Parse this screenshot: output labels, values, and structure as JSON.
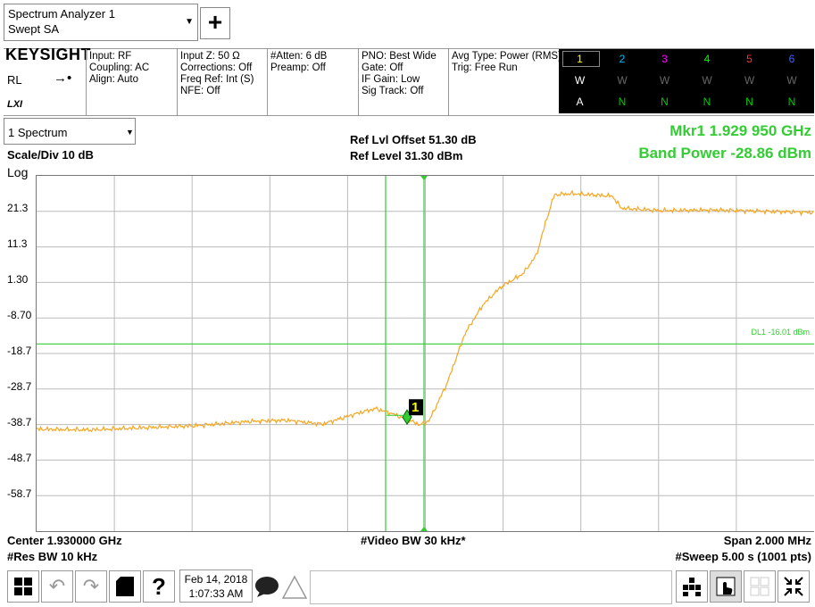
{
  "mode": {
    "line1": "Spectrum Analyzer 1",
    "line2": "Swept SA"
  },
  "toolbar": {
    "add_label": "+"
  },
  "brand": {
    "logo": "KEYSIGHT",
    "rl": "RL",
    "lxi": "LXI"
  },
  "info": {
    "col1": [
      "Input: RF",
      "Coupling: AC",
      "Align: Auto"
    ],
    "col2": [
      "Input Z: 50 Ω",
      "Corrections: Off",
      "Freq Ref: Int (S)",
      "NFE: Off"
    ],
    "col3": [
      "#Atten: 6 dB",
      "Preamp: Off"
    ],
    "col4": [
      "PNO: Best Wide",
      "Gate: Off",
      "IF Gain: Low",
      "Sig Track: Off"
    ],
    "col5": [
      "Avg Type: Power (RMS)",
      "Trig: Free Run"
    ]
  },
  "traces": [
    {
      "num": "1",
      "type": "W",
      "det": "A",
      "color": "#ffff00"
    },
    {
      "num": "2",
      "type": "W",
      "det": "N",
      "color": "#00c0ff"
    },
    {
      "num": "3",
      "type": "W",
      "det": "N",
      "color": "#ff00ff"
    },
    {
      "num": "4",
      "type": "W",
      "det": "N",
      "color": "#00ff00"
    },
    {
      "num": "5",
      "type": "W",
      "det": "N",
      "color": "#ff3030"
    },
    {
      "num": "6",
      "type": "W",
      "det": "N",
      "color": "#4060ff"
    }
  ],
  "window": {
    "select": "1 Spectrum",
    "scale_div": "Scale/Div 10 dB",
    "log": "Log",
    "ref_offset": "Ref Lvl Offset 51.30 dB",
    "ref_level": "Ref Level 31.30 dBm",
    "marker": "Mkr1  1.929 950 GHz",
    "band_power": "Band Power -28.86 dBm",
    "dl_label": "DL1 -16.01 dBm",
    "marker_number": "1"
  },
  "axis": {
    "y_ticks": [
      "21.3",
      "11.3",
      "1.30",
      "-8.70",
      "-18.7",
      "-28.7",
      "-38.7",
      "-48.7",
      "-58.7"
    ]
  },
  "footer": {
    "center": "Center 1.930000 GHz",
    "res_bw": "#Res BW 10 kHz",
    "video_bw": "#Video BW 30 kHz*",
    "span": "Span 2.000 MHz",
    "sweep": "#Sweep 5.00 s (1001 pts)"
  },
  "status": {
    "date": "Feb 14, 2018",
    "time": "1:07:33 AM"
  },
  "colors": {
    "trace": "#f5a623",
    "display_line": "#3c3",
    "marker_line": "#3c3",
    "grid": "#bbb"
  }
}
